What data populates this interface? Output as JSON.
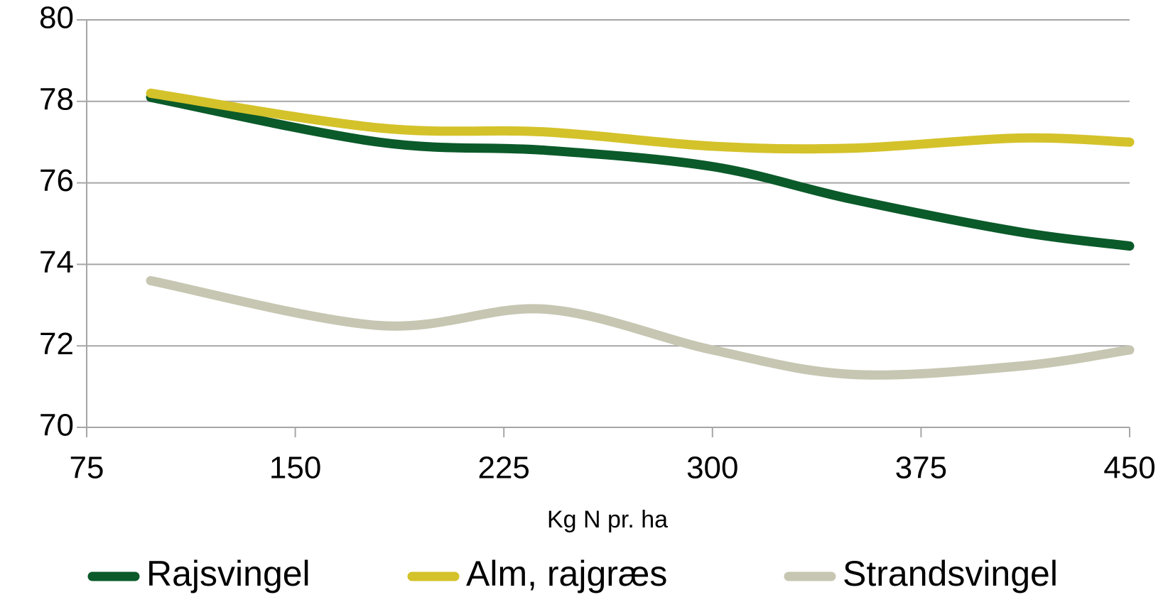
{
  "chart_data": {
    "type": "line",
    "x_label": "Kg N pr. ha",
    "x": [
      98,
      180,
      240,
      300,
      350,
      410,
      450
    ],
    "series": [
      {
        "name": "Rajsvingel",
        "color": "#0b5a2a",
        "values": [
          78.1,
          77.0,
          76.8,
          76.4,
          75.6,
          74.8,
          74.45
        ]
      },
      {
        "name": "Alm, rajgræs",
        "color": "#d4c22a",
        "values": [
          78.2,
          77.35,
          77.25,
          76.9,
          76.85,
          77.1,
          77.0
        ]
      },
      {
        "name": "Strandsvingel",
        "color": "#c6c6b2",
        "values": [
          73.6,
          72.5,
          72.9,
          71.9,
          71.3,
          71.5,
          71.9
        ]
      }
    ],
    "xlim": [
      75,
      450
    ],
    "xticks": [
      75,
      150,
      225,
      300,
      375,
      450
    ],
    "ylim": [
      70,
      80
    ],
    "yticks": [
      70,
      72,
      74,
      76,
      78,
      80
    ],
    "grid": true,
    "legend": "bottom"
  }
}
